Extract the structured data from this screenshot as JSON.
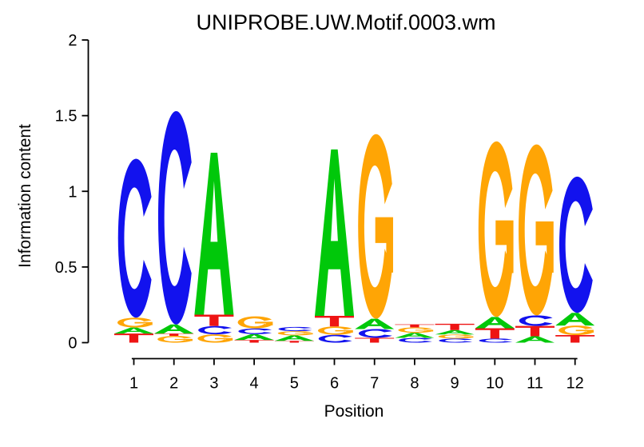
{
  "chart_data": {
    "type": "sequence_logo",
    "title": "UNIPROBE.UW.Motif.0003.wm",
    "xlabel": "Position",
    "ylabel": "Information content",
    "ylim": [
      0,
      2
    ],
    "grid": false,
    "legend": "none",
    "yticks": [
      {
        "value": 0,
        "label": "0"
      },
      {
        "value": 0.5,
        "label": "0.5"
      },
      {
        "value": 1,
        "label": "1"
      },
      {
        "value": 1.5,
        "label": "1.5"
      },
      {
        "value": 2,
        "label": "2"
      }
    ],
    "alphabet_colors": {
      "A": "#00C80A",
      "C": "#1212EE",
      "G": "#FFA505",
      "T": "#EE1414"
    },
    "positions": [
      {
        "label": "1",
        "stack": [
          {
            "base": "T",
            "bits": 0.06
          },
          {
            "base": "A",
            "bits": 0.04
          },
          {
            "base": "G",
            "bits": 0.065
          },
          {
            "base": "C",
            "bits": 1.05
          }
        ]
      },
      {
        "label": "2",
        "stack": [
          {
            "base": "G",
            "bits": 0.045
          },
          {
            "base": "T",
            "bits": 0.015
          },
          {
            "base": "A",
            "bits": 0.06
          },
          {
            "base": "C",
            "bits": 1.41
          }
        ]
      },
      {
        "label": "3",
        "stack": [
          {
            "base": "G",
            "bits": 0.055
          },
          {
            "base": "C",
            "bits": 0.055
          },
          {
            "base": "T",
            "bits": 0.075
          },
          {
            "base": "A",
            "bits": 1.07
          }
        ]
      },
      {
        "label": "4",
        "stack": [
          {
            "base": "T",
            "bits": 0.018
          },
          {
            "base": "A",
            "bits": 0.038
          },
          {
            "base": "C",
            "bits": 0.038
          },
          {
            "base": "G",
            "bits": 0.08
          }
        ]
      },
      {
        "label": "5",
        "stack": [
          {
            "base": "T",
            "bits": 0.012
          },
          {
            "base": "A",
            "bits": 0.036
          },
          {
            "base": "G",
            "bits": 0.028
          },
          {
            "base": "C",
            "bits": 0.028
          }
        ]
      },
      {
        "label": "6",
        "stack": [
          {
            "base": "C",
            "bits": 0.052
          },
          {
            "base": "G",
            "bits": 0.055
          },
          {
            "base": "T",
            "bits": 0.07
          },
          {
            "base": "A",
            "bits": 1.1
          }
        ]
      },
      {
        "label": "7",
        "stack": [
          {
            "base": "T",
            "bits": 0.032
          },
          {
            "base": "C",
            "bits": 0.058
          },
          {
            "base": "A",
            "bits": 0.068
          },
          {
            "base": "G",
            "bits": 1.22
          }
        ]
      },
      {
        "label": "8",
        "stack": [
          {
            "base": "C",
            "bits": 0.032
          },
          {
            "base": "A",
            "bits": 0.033
          },
          {
            "base": "G",
            "bits": 0.036
          },
          {
            "base": "T",
            "bits": 0.02
          }
        ]
      },
      {
        "label": "9",
        "stack": [
          {
            "base": "C",
            "bits": 0.027
          },
          {
            "base": "G",
            "bits": 0.027
          },
          {
            "base": "A",
            "bits": 0.029
          },
          {
            "base": "T",
            "bits": 0.042
          }
        ]
      },
      {
        "label": "10",
        "stack": [
          {
            "base": "C",
            "bits": 0.027
          },
          {
            "base": "T",
            "bits": 0.068
          },
          {
            "base": "A",
            "bits": 0.075
          },
          {
            "base": "G",
            "bits": 1.16
          }
        ]
      },
      {
        "label": "11",
        "stack": [
          {
            "base": "A",
            "bits": 0.042
          },
          {
            "base": "T",
            "bits": 0.068
          },
          {
            "base": "C",
            "bits": 0.07
          },
          {
            "base": "G",
            "bits": 1.13
          }
        ]
      },
      {
        "label": "12",
        "stack": [
          {
            "base": "T",
            "bits": 0.05
          },
          {
            "base": "G",
            "bits": 0.063
          },
          {
            "base": "A",
            "bits": 0.084
          },
          {
            "base": "C",
            "bits": 0.9
          }
        ]
      }
    ]
  }
}
